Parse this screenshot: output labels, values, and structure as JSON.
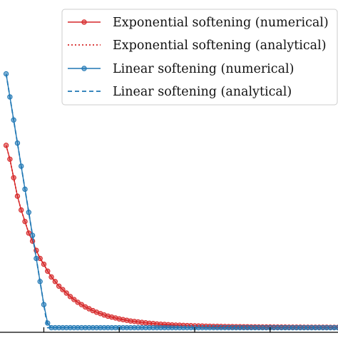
{
  "chart_data": {
    "type": "line",
    "title": "",
    "xlabel": "",
    "ylabel": "",
    "xlim": [
      -0.1,
      4.4
    ],
    "ylim": [
      -0.02,
      1.42
    ],
    "xticks": [
      0.5,
      1.5,
      2.5,
      3.5
    ],
    "xtick_labels": [],
    "grid": false,
    "legend_position": "top-right",
    "series": [
      {
        "name": "Exponential softening (numerical)",
        "color": "#d62728",
        "style": "solid",
        "marker": "circle",
        "x": [
          0.0,
          0.05,
          0.1,
          0.15,
          0.2,
          0.25,
          0.3,
          0.35,
          0.4,
          0.45,
          0.5,
          0.55,
          0.6,
          0.65,
          0.7,
          0.75,
          0.8,
          0.85,
          0.9,
          0.95,
          1.0,
          1.05,
          1.1,
          1.15,
          1.2,
          1.25,
          1.3,
          1.35,
          1.4,
          1.45,
          1.5,
          1.55,
          1.6,
          1.65,
          1.7,
          1.75,
          1.8,
          1.85,
          1.9,
          1.95,
          2.0,
          2.05,
          2.1,
          2.15,
          2.2,
          2.25,
          2.3,
          2.35,
          2.4,
          2.45,
          2.5,
          2.55,
          2.6,
          2.65,
          2.7,
          2.75,
          2.8,
          2.85,
          2.9,
          2.95,
          3.0,
          3.05,
          3.1,
          3.15,
          3.2,
          3.25,
          3.3,
          3.35,
          3.4,
          3.45,
          3.5,
          3.55,
          3.6,
          3.65,
          3.7,
          3.75,
          3.8,
          3.85,
          3.9,
          3.95,
          4.0,
          4.05,
          4.1,
          4.15,
          4.2,
          4.25,
          4.3,
          4.35,
          4.4
        ],
        "y": [
          0.79,
          0.73,
          0.65,
          0.57,
          0.51,
          0.46,
          0.41,
          0.375,
          0.335,
          0.3,
          0.275,
          0.245,
          0.22,
          0.2,
          0.18,
          0.165,
          0.15,
          0.135,
          0.122,
          0.11,
          0.1,
          0.09,
          0.082,
          0.074,
          0.067,
          0.061,
          0.055,
          0.05,
          0.046,
          0.042,
          0.038,
          0.035,
          0.032,
          0.029,
          0.027,
          0.025,
          0.023,
          0.021,
          0.019,
          0.018,
          0.016,
          0.015,
          0.014,
          0.013,
          0.012,
          0.011,
          0.0105,
          0.0098,
          0.0092,
          0.0086,
          0.008,
          0.0075,
          0.007,
          0.0066,
          0.0062,
          0.0058,
          0.0055,
          0.0052,
          0.0049,
          0.0046,
          0.0044,
          0.0042,
          0.004,
          0.0038,
          0.0036,
          0.0034,
          0.0033,
          0.0031,
          0.003,
          0.0029,
          0.0028,
          0.0027,
          0.0026,
          0.0025,
          0.0024,
          0.0023,
          0.0022,
          0.0021,
          0.002,
          0.0019,
          0.0018,
          0.0018,
          0.0017,
          0.0017,
          0.0016,
          0.0016,
          0.0015,
          0.0015,
          0.0015
        ]
      },
      {
        "name": "Exponential softening (analytical)",
        "color": "#d62728",
        "style": "dotted",
        "marker": "none",
        "x": [
          0.0,
          0.05,
          0.1,
          0.15,
          0.2,
          0.25,
          0.3,
          0.35,
          0.4,
          0.45,
          0.5,
          0.55,
          0.6,
          0.65,
          0.7,
          0.75,
          0.8,
          0.85,
          0.9,
          0.95,
          1.0,
          1.05,
          1.1,
          1.15,
          1.2,
          1.25,
          1.3,
          1.35,
          1.4,
          1.45,
          1.5,
          1.55,
          1.6,
          1.65,
          1.7,
          1.75,
          1.8,
          1.85,
          1.9,
          1.95,
          2.0,
          2.05,
          2.1,
          2.15,
          2.2,
          2.25,
          2.3,
          2.35,
          2.4,
          2.45,
          2.5,
          2.55,
          2.6,
          2.65,
          2.7,
          2.75,
          2.8,
          2.85,
          2.9,
          2.95,
          3.0,
          3.05,
          3.1,
          3.15,
          3.2,
          3.25,
          3.3,
          3.35,
          3.4,
          3.45,
          3.5,
          3.55,
          3.6,
          3.65,
          3.7,
          3.75,
          3.8,
          3.85,
          3.9,
          3.95,
          4.0,
          4.05,
          4.1,
          4.15,
          4.2,
          4.25,
          4.3,
          4.35,
          4.4
        ],
        "y": [
          0.79,
          0.73,
          0.65,
          0.57,
          0.51,
          0.46,
          0.41,
          0.375,
          0.335,
          0.3,
          0.275,
          0.245,
          0.22,
          0.2,
          0.18,
          0.165,
          0.15,
          0.135,
          0.122,
          0.11,
          0.1,
          0.09,
          0.082,
          0.074,
          0.067,
          0.061,
          0.055,
          0.05,
          0.046,
          0.042,
          0.038,
          0.035,
          0.032,
          0.029,
          0.027,
          0.025,
          0.023,
          0.021,
          0.019,
          0.018,
          0.016,
          0.015,
          0.014,
          0.013,
          0.012,
          0.011,
          0.0105,
          0.0098,
          0.0092,
          0.0086,
          0.008,
          0.0075,
          0.007,
          0.0066,
          0.0062,
          0.0058,
          0.0055,
          0.0052,
          0.0049,
          0.0046,
          0.0044,
          0.0042,
          0.004,
          0.0038,
          0.0036,
          0.0034,
          0.0033,
          0.0031,
          0.003,
          0.0029,
          0.0028,
          0.0027,
          0.0026,
          0.0025,
          0.0024,
          0.0023,
          0.0022,
          0.0021,
          0.002,
          0.0019,
          0.0018,
          0.0018,
          0.0017,
          0.0017,
          0.0016,
          0.0016,
          0.0015,
          0.0015,
          0.0015
        ]
      },
      {
        "name": "Linear softening (numerical)",
        "color": "#1f77b4",
        "style": "solid",
        "marker": "circle",
        "x": [
          0.0,
          0.05,
          0.1,
          0.15,
          0.2,
          0.25,
          0.3,
          0.35,
          0.4,
          0.45,
          0.5,
          0.55,
          0.6,
          0.65,
          0.7,
          0.75,
          0.8,
          0.85,
          0.9,
          0.95,
          1.0,
          1.05,
          1.1,
          1.15,
          1.2,
          1.25,
          1.3,
          1.35,
          1.4,
          1.45,
          1.5,
          1.55,
          1.6,
          1.65,
          1.7,
          1.75,
          1.8,
          1.85,
          1.9,
          1.95,
          2.0,
          2.05,
          2.1,
          2.15,
          2.2,
          2.25,
          2.3,
          2.35,
          2.4,
          2.45,
          2.5,
          2.55,
          2.6,
          2.65,
          2.7,
          2.75,
          2.8,
          2.85,
          2.9,
          2.95,
          3.0,
          3.05,
          3.1,
          3.15,
          3.2,
          3.25,
          3.3,
          3.35,
          3.4,
          3.45,
          3.5,
          3.55,
          3.6,
          3.65,
          3.7,
          3.75,
          3.8,
          3.85,
          3.9,
          3.95,
          4.0,
          4.05,
          4.1,
          4.15,
          4.2,
          4.25,
          4.3,
          4.35,
          4.4
        ],
        "y": [
          1.1,
          1.0,
          0.9,
          0.8,
          0.7,
          0.6,
          0.5,
          0.4,
          0.3,
          0.2,
          0.1,
          0.02,
          0.0,
          0.0,
          0.0,
          0.0,
          0.0,
          0.0,
          0.0,
          0.0,
          0.0,
          0.0,
          0.0,
          0.0,
          0.0,
          0.0,
          0.0,
          0.0,
          0.0,
          0.0,
          0.0,
          0.0,
          0.0,
          0.0,
          0.0,
          0.0,
          0.0,
          0.0,
          0.0,
          0.0,
          0.0,
          0.0,
          0.0,
          0.0,
          0.0,
          0.0,
          0.0,
          0.0,
          0.0,
          0.0,
          0.0,
          0.0,
          0.0,
          0.0,
          0.0,
          0.0,
          0.0,
          0.0,
          0.0,
          0.0,
          0.0,
          0.0,
          0.0,
          0.0,
          0.0,
          0.0,
          0.0,
          0.0,
          0.0,
          0.0,
          0.0,
          0.0,
          0.0,
          0.0,
          0.0,
          0.0,
          0.0,
          0.0,
          0.0,
          0.0,
          0.0,
          0.0,
          0.0,
          0.0,
          0.0,
          0.0,
          0.0,
          0.0,
          0.0
        ]
      },
      {
        "name": "Linear softening (analytical)",
        "color": "#1f77b4",
        "style": "dashed",
        "marker": "none",
        "x": [
          0.0,
          0.5,
          0.55,
          0.6,
          4.4
        ],
        "y": [
          1.1,
          0.1,
          0.0,
          0.0,
          0.0
        ]
      }
    ]
  }
}
